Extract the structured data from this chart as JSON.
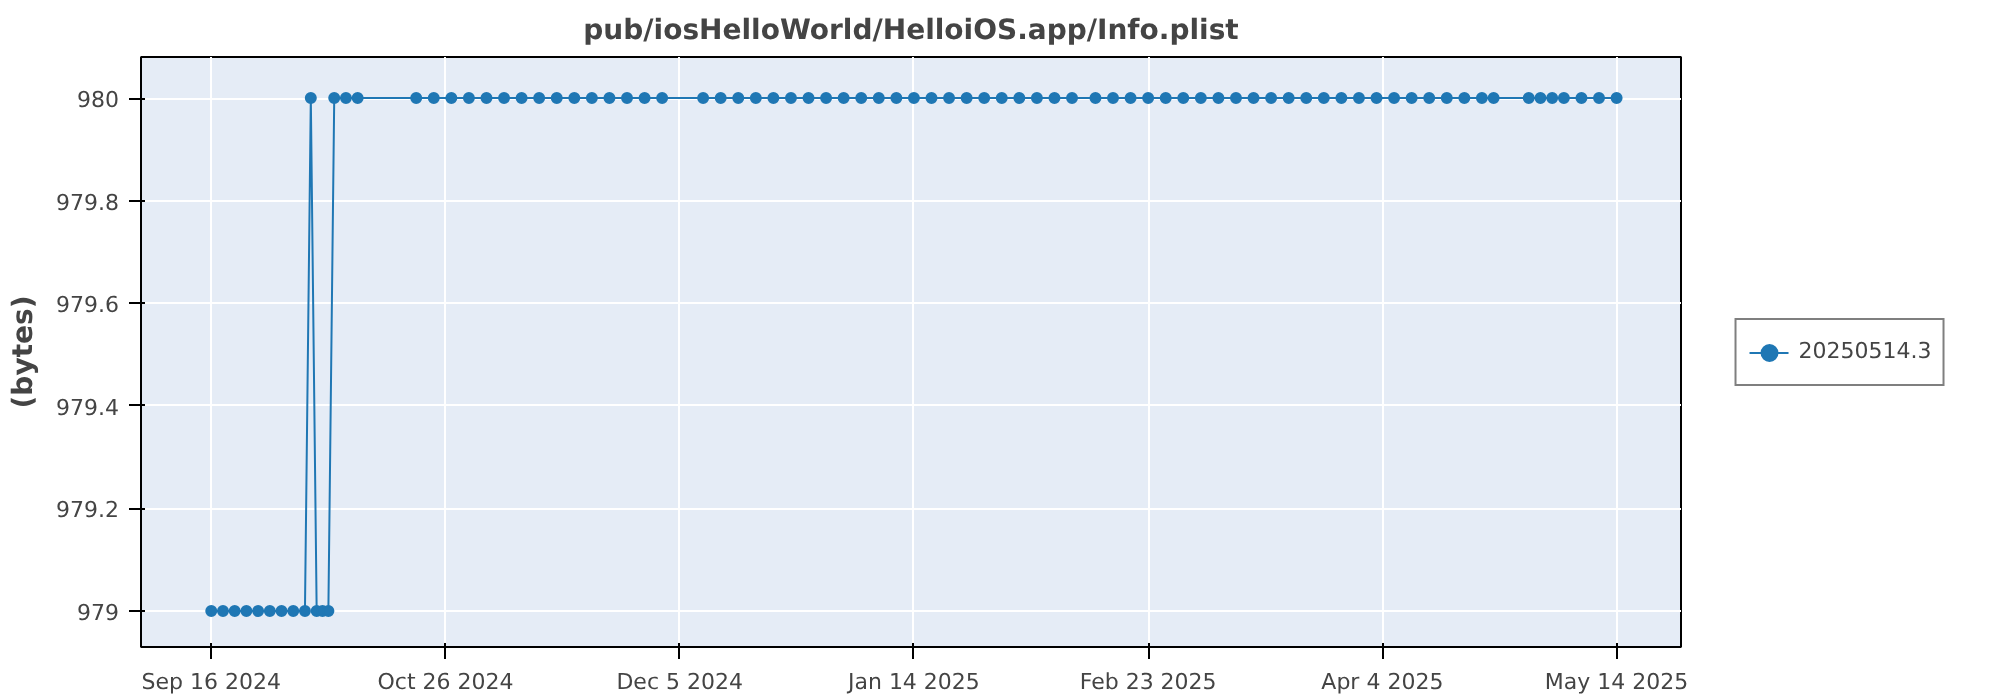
{
  "chart_data": {
    "type": "line",
    "title": "pub/iosHelloWorld/HelloiOS.app/Info.plist",
    "ylabel": "(bytes)",
    "x": [
      "2024-09-16",
      "2024-09-18",
      "2024-09-20",
      "2024-09-22",
      "2024-09-24",
      "2024-09-26",
      "2024-09-28",
      "2024-09-30",
      "2024-10-02",
      "2024-10-03",
      "2024-10-04",
      "2024-10-05",
      "2024-10-06",
      "2024-10-07",
      "2024-10-09",
      "2024-10-11",
      "2024-10-21",
      "2024-10-24",
      "2024-10-27",
      "2024-10-30",
      "2024-11-02",
      "2024-11-05",
      "2024-11-08",
      "2024-11-11",
      "2024-11-14",
      "2024-11-17",
      "2024-11-20",
      "2024-11-23",
      "2024-11-26",
      "2024-11-29",
      "2024-12-02",
      "2024-12-09",
      "2024-12-12",
      "2024-12-15",
      "2024-12-18",
      "2024-12-21",
      "2024-12-24",
      "2024-12-27",
      "2024-12-30",
      "2025-01-02",
      "2025-01-05",
      "2025-01-08",
      "2025-01-11",
      "2025-01-14",
      "2025-01-17",
      "2025-01-20",
      "2025-01-23",
      "2025-01-26",
      "2025-01-29",
      "2025-02-01",
      "2025-02-04",
      "2025-02-07",
      "2025-02-10",
      "2025-02-14",
      "2025-02-17",
      "2025-02-20",
      "2025-02-23",
      "2025-02-26",
      "2025-03-01",
      "2025-03-04",
      "2025-03-07",
      "2025-03-10",
      "2025-03-13",
      "2025-03-16",
      "2025-03-19",
      "2025-03-22",
      "2025-03-25",
      "2025-03-28",
      "2025-03-31",
      "2025-04-03",
      "2025-04-06",
      "2025-04-09",
      "2025-04-12",
      "2025-04-15",
      "2025-04-18",
      "2025-04-21",
      "2025-04-23",
      "2025-04-29",
      "2025-05-01",
      "2025-05-03",
      "2025-05-05",
      "2025-05-08",
      "2025-05-11",
      "2025-05-14"
    ],
    "series": [
      {
        "name": "20250514.3",
        "color": "#1f77b4",
        "values": [
          979,
          979,
          979,
          979,
          979,
          979,
          979,
          979,
          979,
          980,
          979,
          979,
          979,
          980,
          980,
          980,
          980,
          980,
          980,
          980,
          980,
          980,
          980,
          980,
          980,
          980,
          980,
          980,
          980,
          980,
          980,
          980,
          980,
          980,
          980,
          980,
          980,
          980,
          980,
          980,
          980,
          980,
          980,
          980,
          980,
          980,
          980,
          980,
          980,
          980,
          980,
          980,
          980,
          980,
          980,
          980,
          980,
          980,
          980,
          980,
          980,
          980,
          980,
          980,
          980,
          980,
          980,
          980,
          980,
          980,
          980,
          980,
          980,
          980,
          980,
          980,
          980,
          980,
          980,
          980,
          980,
          980,
          980,
          980
        ]
      }
    ],
    "xlim": [
      "2024-09-04",
      "2025-05-25"
    ],
    "xticks": [
      {
        "value": "2024-09-16",
        "label": "Sep 16 2024"
      },
      {
        "value": "2024-10-26",
        "label": "Oct 26 2024"
      },
      {
        "value": "2024-12-05",
        "label": "Dec 5 2024"
      },
      {
        "value": "2025-01-14",
        "label": "Jan 14 2025"
      },
      {
        "value": "2025-02-23",
        "label": "Feb 23 2025"
      },
      {
        "value": "2025-04-04",
        "label": "Apr 4 2025"
      },
      {
        "value": "2025-05-14",
        "label": "May 14 2025"
      }
    ],
    "ylim": [
      978.93,
      980.08
    ],
    "yticks": [
      979,
      979.2,
      979.4,
      979.6,
      979.8,
      980
    ],
    "grid": true,
    "legend": "right",
    "marker": "circle",
    "line_style": "solid"
  }
}
